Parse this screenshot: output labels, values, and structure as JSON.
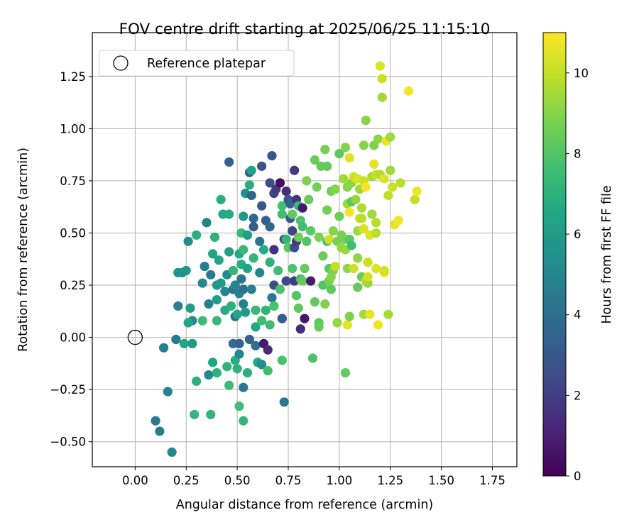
{
  "chart_data": {
    "type": "scatter",
    "title": "FOV centre drift starting at 2025/06/25 11:15:10",
    "xlabel": "Angular distance from reference (arcmin)",
    "ylabel": "Rotation from reference (arcmin)",
    "xlim": [
      -0.21,
      1.87
    ],
    "ylim": [
      -0.62,
      1.46
    ],
    "xticks": [
      0.0,
      0.25,
      0.5,
      0.75,
      1.0,
      1.25,
      1.5,
      1.75
    ],
    "xtick_labels": [
      "0.00",
      "0.25",
      "0.50",
      "0.75",
      "1.00",
      "1.25",
      "1.50",
      "1.75"
    ],
    "yticks": [
      -0.5,
      -0.25,
      0.0,
      0.25,
      0.5,
      0.75,
      1.0,
      1.25
    ],
    "ytick_labels": [
      "−0.50",
      "−0.25",
      "0.00",
      "0.25",
      "0.50",
      "0.75",
      "1.00",
      "1.25"
    ],
    "grid": true,
    "legend": {
      "placement": "top-left",
      "entries": [
        "Reference platepar"
      ]
    },
    "colorbar": {
      "label": "Hours from first FF file",
      "range": [
        0,
        11
      ],
      "ticks": [
        0,
        2,
        4,
        6,
        8,
        10
      ],
      "tick_labels": [
        "0",
        "2",
        "4",
        "6",
        "8",
        "10"
      ],
      "colormap": "viridis"
    },
    "reference_point": {
      "x": 0.0,
      "y": 0.0
    },
    "points": [
      {
        "x": 0.18,
        "y": -0.55,
        "h": 5.0
      },
      {
        "x": 0.12,
        "y": -0.45,
        "h": 4.6
      },
      {
        "x": 0.1,
        "y": -0.4,
        "h": 4.4
      },
      {
        "x": 0.16,
        "y": -0.26,
        "h": 4.8
      },
      {
        "x": 0.14,
        "y": -0.05,
        "h": 4.7
      },
      {
        "x": 0.2,
        "y": -0.01,
        "h": 4.5
      },
      {
        "x": 0.24,
        "y": -0.03,
        "h": 6.4
      },
      {
        "x": 0.28,
        "y": -0.03,
        "h": 6.0
      },
      {
        "x": 0.21,
        "y": 0.15,
        "h": 4.9
      },
      {
        "x": 0.23,
        "y": 0.31,
        "h": 5.2
      },
      {
        "x": 0.21,
        "y": 0.31,
        "h": 5.6
      },
      {
        "x": 0.25,
        "y": 0.32,
        "h": 5.8
      },
      {
        "x": 0.26,
        "y": 0.46,
        "h": 5.4
      },
      {
        "x": 0.3,
        "y": 0.49,
        "h": 6.9
      },
      {
        "x": 0.27,
        "y": 0.14,
        "h": 6.2
      },
      {
        "x": 0.28,
        "y": 0.08,
        "h": 5.1
      },
      {
        "x": 0.26,
        "y": 0.07,
        "h": 6.6
      },
      {
        "x": 0.3,
        "y": -0.21,
        "h": 7.0
      },
      {
        "x": 0.29,
        "y": -0.37,
        "h": 7.2
      },
      {
        "x": 0.37,
        "y": -0.37,
        "h": 7.2
      },
      {
        "x": 0.33,
        "y": 0.08,
        "h": 7.4
      },
      {
        "x": 0.33,
        "y": 0.26,
        "h": 5.0
      },
      {
        "x": 0.34,
        "y": 0.34,
        "h": 4.6
      },
      {
        "x": 0.35,
        "y": 0.55,
        "h": 4.9
      },
      {
        "x": 0.36,
        "y": 0.16,
        "h": 4.8
      },
      {
        "x": 0.37,
        "y": 0.3,
        "h": 4.4
      },
      {
        "x": 0.38,
        "y": 0.4,
        "h": 6.3
      },
      {
        "x": 0.39,
        "y": 0.48,
        "h": 7.1
      },
      {
        "x": 0.36,
        "y": -0.18,
        "h": 5.2
      },
      {
        "x": 0.38,
        "y": -0.12,
        "h": 6.6
      },
      {
        "x": 0.4,
        "y": -0.17,
        "h": 7.0
      },
      {
        "x": 0.4,
        "y": 0.08,
        "h": 7.3
      },
      {
        "x": 0.4,
        "y": 0.18,
        "h": 6.1
      },
      {
        "x": 0.4,
        "y": 0.25,
        "h": 5.6
      },
      {
        "x": 0.41,
        "y": 0.37,
        "h": 6.5
      },
      {
        "x": 0.42,
        "y": 0.26,
        "h": 6.0
      },
      {
        "x": 0.42,
        "y": 0.66,
        "h": 6.8
      },
      {
        "x": 0.43,
        "y": 0.59,
        "h": 6.5
      },
      {
        "x": 0.44,
        "y": 0.13,
        "h": 6.8
      },
      {
        "x": 0.44,
        "y": 0.22,
        "h": 5.0
      },
      {
        "x": 0.45,
        "y": 0.3,
        "h": 5.3
      },
      {
        "x": 0.46,
        "y": 0.41,
        "h": 6.2
      },
      {
        "x": 0.46,
        "y": 0.59,
        "h": 6.7
      },
      {
        "x": 0.46,
        "y": 0.84,
        "h": 3.4
      },
      {
        "x": 0.45,
        "y": -0.14,
        "h": 7.1
      },
      {
        "x": 0.46,
        "y": -0.23,
        "h": 7.4
      },
      {
        "x": 0.47,
        "y": 0.15,
        "h": 7.0
      },
      {
        "x": 0.48,
        "y": 0.23,
        "h": 4.3
      },
      {
        "x": 0.49,
        "y": 0.1,
        "h": 3.8
      },
      {
        "x": 0.48,
        "y": -0.03,
        "h": 3.9
      },
      {
        "x": 0.48,
        "y": 0.32,
        "h": 7.2
      },
      {
        "x": 0.49,
        "y": 0.25,
        "h": 5.0
      },
      {
        "x": 0.49,
        "y": -0.11,
        "h": 6.9
      },
      {
        "x": 0.5,
        "y": -0.15,
        "h": 7.1
      },
      {
        "x": 0.51,
        "y": -0.08,
        "h": 5.0
      },
      {
        "x": 0.51,
        "y": -0.03,
        "h": 3.5
      },
      {
        "x": 0.51,
        "y": -0.33,
        "h": 7.5
      },
      {
        "x": 0.5,
        "y": 0.11,
        "h": 6.4
      },
      {
        "x": 0.51,
        "y": 0.21,
        "h": 4.9
      },
      {
        "x": 0.51,
        "y": 0.4,
        "h": 6.6
      },
      {
        "x": 0.52,
        "y": 0.5,
        "h": 7.3
      },
      {
        "x": 0.52,
        "y": 0.28,
        "h": 4.3
      },
      {
        "x": 0.52,
        "y": 0.35,
        "h": 6.8
      },
      {
        "x": 0.53,
        "y": 0.16,
        "h": 4.7
      },
      {
        "x": 0.53,
        "y": 0.23,
        "h": 4.0
      },
      {
        "x": 0.53,
        "y": -0.24,
        "h": 4.4
      },
      {
        "x": 0.53,
        "y": -0.4,
        "h": 7.2
      },
      {
        "x": 0.54,
        "y": 0.12,
        "h": 6.0
      },
      {
        "x": 0.54,
        "y": 0.69,
        "h": 5.5
      },
      {
        "x": 0.53,
        "y": 0.58,
        "h": 5.8
      },
      {
        "x": 0.53,
        "y": 0.42,
        "h": 7.4
      },
      {
        "x": 0.55,
        "y": 0.33,
        "h": 6.3
      },
      {
        "x": 0.55,
        "y": 0.49,
        "h": 6.1
      },
      {
        "x": 0.56,
        "y": 0.73,
        "h": 6.8
      },
      {
        "x": 0.56,
        "y": 0.79,
        "h": 3.3
      },
      {
        "x": 0.57,
        "y": 0.8,
        "h": 6.3
      },
      {
        "x": 0.56,
        "y": -0.01,
        "h": 3.4
      },
      {
        "x": 0.55,
        "y": -0.17,
        "h": 7.0
      },
      {
        "x": 0.57,
        "y": 0.23,
        "h": 4.8
      },
      {
        "x": 0.58,
        "y": 0.38,
        "h": 7.2
      },
      {
        "x": 0.58,
        "y": 0.57,
        "h": 3.7
      },
      {
        "x": 0.58,
        "y": 0.53,
        "h": 3.2
      },
      {
        "x": 0.57,
        "y": 0.68,
        "h": 3.5
      },
      {
        "x": 0.59,
        "y": 0.13,
        "h": 7.3
      },
      {
        "x": 0.59,
        "y": 0.05,
        "h": 6.6
      },
      {
        "x": 0.59,
        "y": -0.04,
        "h": 4.0
      },
      {
        "x": 0.6,
        "y": -0.12,
        "h": 6.5
      },
      {
        "x": 0.61,
        "y": 0.31,
        "h": 5.0
      },
      {
        "x": 0.61,
        "y": 0.46,
        "h": 4.2
      },
      {
        "x": 0.62,
        "y": 0.63,
        "h": 3.1
      },
      {
        "x": 0.62,
        "y": 0.82,
        "h": 2.8
      },
      {
        "x": 0.62,
        "y": 0.08,
        "h": 7.6
      },
      {
        "x": 0.62,
        "y": -0.13,
        "h": 5.3
      },
      {
        "x": 0.63,
        "y": -0.03,
        "h": 0.8
      },
      {
        "x": 0.63,
        "y": 0.42,
        "h": 6.7
      },
      {
        "x": 0.64,
        "y": 0.56,
        "h": 3.3
      },
      {
        "x": 0.64,
        "y": 0.13,
        "h": 7.1
      },
      {
        "x": 0.65,
        "y": -0.06,
        "h": 1.3
      },
      {
        "x": 0.65,
        "y": -0.16,
        "h": 7.6
      },
      {
        "x": 0.66,
        "y": 0.53,
        "h": 3.6
      },
      {
        "x": 0.66,
        "y": 0.74,
        "h": 2.6
      },
      {
        "x": 0.67,
        "y": 0.87,
        "h": 3.0
      },
      {
        "x": 0.66,
        "y": 0.36,
        "h": 7.0
      },
      {
        "x": 0.67,
        "y": 0.19,
        "h": 4.4
      },
      {
        "x": 0.66,
        "y": 0.06,
        "h": 7.5
      },
      {
        "x": 0.68,
        "y": 0.15,
        "h": 7.8
      },
      {
        "x": 0.68,
        "y": 0.25,
        "h": 2.6
      },
      {
        "x": 0.68,
        "y": 0.42,
        "h": 1.5
      },
      {
        "x": 0.68,
        "y": 0.69,
        "h": 2.2
      },
      {
        "x": 0.69,
        "y": 0.71,
        "h": 1.8
      },
      {
        "x": 0.7,
        "y": 0.32,
        "h": 7.6
      },
      {
        "x": 0.71,
        "y": 0.74,
        "h": 0.4
      },
      {
        "x": 0.71,
        "y": 0.23,
        "h": 7.9
      },
      {
        "x": 0.72,
        "y": 0.63,
        "h": 7.7
      },
      {
        "x": 0.72,
        "y": 0.59,
        "h": 7.6
      },
      {
        "x": 0.72,
        "y": -0.11,
        "h": 7.8
      },
      {
        "x": 0.72,
        "y": 0.09,
        "h": 6.8
      },
      {
        "x": 0.72,
        "y": 0.09,
        "h": 3.2
      },
      {
        "x": 0.73,
        "y": 0.47,
        "h": 2.5
      },
      {
        "x": 0.73,
        "y": -0.31,
        "h": 4.4
      },
      {
        "x": 0.74,
        "y": 0.27,
        "h": 2.5
      },
      {
        "x": 0.74,
        "y": 0.47,
        "h": 7.2
      },
      {
        "x": 0.74,
        "y": 0.7,
        "h": 1.3
      },
      {
        "x": 0.75,
        "y": 0.43,
        "h": 8.2
      },
      {
        "x": 0.75,
        "y": 0.66,
        "h": 2.9
      },
      {
        "x": 0.76,
        "y": 0.57,
        "h": 3.1
      },
      {
        "x": 0.76,
        "y": 0.64,
        "h": 3.3
      },
      {
        "x": 0.77,
        "y": 0.33,
        "h": 7.9
      },
      {
        "x": 0.77,
        "y": 0.59,
        "h": 8.2
      },
      {
        "x": 0.77,
        "y": 0.51,
        "h": 2.2
      },
      {
        "x": 0.78,
        "y": 0.43,
        "h": 2.7
      },
      {
        "x": 0.78,
        "y": 0.8,
        "h": 1.9
      },
      {
        "x": 0.78,
        "y": 0.27,
        "h": 2.0
      },
      {
        "x": 0.79,
        "y": 0.46,
        "h": 1.9
      },
      {
        "x": 0.79,
        "y": 0.66,
        "h": 1.6
      },
      {
        "x": 0.79,
        "y": 0.2,
        "h": 8.0
      },
      {
        "x": 0.8,
        "y": 0.14,
        "h": 8.2
      },
      {
        "x": 0.8,
        "y": 0.48,
        "h": 8.6
      },
      {
        "x": 0.8,
        "y": 0.63,
        "h": 7.3
      },
      {
        "x": 0.81,
        "y": 0.04,
        "h": 1.4
      },
      {
        "x": 0.81,
        "y": 0.28,
        "h": 7.8
      },
      {
        "x": 0.81,
        "y": 0.56,
        "h": 7.9
      },
      {
        "x": 0.82,
        "y": 0.62,
        "h": 0.8
      },
      {
        "x": 0.82,
        "y": 0.53,
        "h": 7.7
      },
      {
        "x": 0.82,
        "y": 0.27,
        "h": 8.3
      },
      {
        "x": 0.83,
        "y": 0.09,
        "h": 0.7
      },
      {
        "x": 0.83,
        "y": 0.33,
        "h": 8.4
      },
      {
        "x": 0.84,
        "y": 0.46,
        "h": 8.0
      },
      {
        "x": 0.84,
        "y": 0.75,
        "h": 8.8
      },
      {
        "x": 0.85,
        "y": 0.66,
        "h": 8.4
      },
      {
        "x": 0.86,
        "y": 0.27,
        "h": 0.9
      },
      {
        "x": 0.86,
        "y": 0.51,
        "h": 8.2
      },
      {
        "x": 0.87,
        "y": -0.1,
        "h": 7.9
      },
      {
        "x": 0.88,
        "y": 0.17,
        "h": 8.3
      },
      {
        "x": 0.88,
        "y": 0.85,
        "h": 8.5
      },
      {
        "x": 0.89,
        "y": 0.72,
        "h": 8.7
      },
      {
        "x": 0.9,
        "y": 0.07,
        "h": 8.2
      },
      {
        "x": 0.9,
        "y": 0.05,
        "h": 8.4
      },
      {
        "x": 0.9,
        "y": 0.48,
        "h": 8.8
      },
      {
        "x": 0.91,
        "y": 0.82,
        "h": 8.4
      },
      {
        "x": 0.92,
        "y": 0.25,
        "h": 8.0
      },
      {
        "x": 0.92,
        "y": 0.39,
        "h": 8.5
      },
      {
        "x": 0.93,
        "y": 0.9,
        "h": 8.7
      },
      {
        "x": 0.93,
        "y": 0.16,
        "h": 8.9
      },
      {
        "x": 0.94,
        "y": 0.61,
        "h": 8.6
      },
      {
        "x": 0.94,
        "y": 0.46,
        "h": 7.9
      },
      {
        "x": 0.94,
        "y": 0.82,
        "h": 8.3
      },
      {
        "x": 0.95,
        "y": 0.47,
        "h": 10.2
      },
      {
        "x": 0.95,
        "y": 0.27,
        "h": 8.8
      },
      {
        "x": 0.95,
        "y": 0.33,
        "h": 8.1
      },
      {
        "x": 0.96,
        "y": 0.29,
        "h": 9.0
      },
      {
        "x": 0.96,
        "y": 0.23,
        "h": 8.2
      },
      {
        "x": 0.96,
        "y": 0.7,
        "h": 8.6
      },
      {
        "x": 0.97,
        "y": 0.51,
        "h": 9.0
      },
      {
        "x": 0.97,
        "y": 0.32,
        "h": 8.9
      },
      {
        "x": 0.98,
        "y": 0.34,
        "h": 10.0
      },
      {
        "x": 0.98,
        "y": 0.71,
        "h": 9.0
      },
      {
        "x": 0.99,
        "y": 0.07,
        "h": 9.3
      },
      {
        "x": 0.99,
        "y": 0.46,
        "h": 8.7
      },
      {
        "x": 1.0,
        "y": 0.88,
        "h": 8.2
      },
      {
        "x": 1.0,
        "y": 0.58,
        "h": 8.5
      },
      {
        "x": 1.01,
        "y": 0.49,
        "h": 8.8
      },
      {
        "x": 1.01,
        "y": 0.43,
        "h": 9.2
      },
      {
        "x": 1.02,
        "y": 0.76,
        "h": 9.4
      },
      {
        "x": 1.03,
        "y": 0.91,
        "h": 9.0
      },
      {
        "x": 1.03,
        "y": 0.42,
        "h": 9.3
      },
      {
        "x": 1.03,
        "y": -0.17,
        "h": 8.3
      },
      {
        "x": 1.03,
        "y": 0.47,
        "h": 8.7
      },
      {
        "x": 1.04,
        "y": 0.06,
        "h": 10.6
      },
      {
        "x": 1.04,
        "y": 0.33,
        "h": 9.1
      },
      {
        "x": 1.04,
        "y": 0.72,
        "h": 9.0
      },
      {
        "x": 1.04,
        "y": 0.64,
        "h": 9.4
      },
      {
        "x": 1.05,
        "y": 0.6,
        "h": 10.8
      },
      {
        "x": 1.05,
        "y": 0.86,
        "h": 10.5
      },
      {
        "x": 1.05,
        "y": 0.47,
        "h": 8.2
      },
      {
        "x": 1.05,
        "y": 0.1,
        "h": 8.9
      },
      {
        "x": 1.06,
        "y": 0.74,
        "h": 9.1
      },
      {
        "x": 1.06,
        "y": 0.44,
        "h": 7.6
      },
      {
        "x": 1.06,
        "y": 0.65,
        "h": 8.1
      },
      {
        "x": 1.07,
        "y": 0.33,
        "h": 10.1
      },
      {
        "x": 1.07,
        "y": 0.77,
        "h": 10.3
      },
      {
        "x": 1.08,
        "y": 0.66,
        "h": 9.2
      },
      {
        "x": 1.08,
        "y": 0.76,
        "h": 10.0
      },
      {
        "x": 1.09,
        "y": 0.51,
        "h": 9.4
      },
      {
        "x": 1.09,
        "y": 0.38,
        "h": 9.1
      },
      {
        "x": 1.09,
        "y": 0.24,
        "h": 8.4
      },
      {
        "x": 1.09,
        "y": 0.76,
        "h": 10.4
      },
      {
        "x": 1.1,
        "y": 0.71,
        "h": 9.5
      },
      {
        "x": 1.1,
        "y": 0.57,
        "h": 10.2
      },
      {
        "x": 1.11,
        "y": 0.29,
        "h": 8.5
      },
      {
        "x": 1.11,
        "y": 0.62,
        "h": 9.6
      },
      {
        "x": 1.11,
        "y": 0.57,
        "h": 9.8
      },
      {
        "x": 1.12,
        "y": 0.11,
        "h": 9.4
      },
      {
        "x": 1.12,
        "y": 0.75,
        "h": 10.2
      },
      {
        "x": 1.12,
        "y": 0.92,
        "h": 9.0
      },
      {
        "x": 1.12,
        "y": 0.52,
        "h": 10.4
      },
      {
        "x": 1.13,
        "y": 0.72,
        "h": 10.9
      },
      {
        "x": 1.13,
        "y": 0.27,
        "h": 10.0
      },
      {
        "x": 1.13,
        "y": 1.04,
        "h": 9.0
      },
      {
        "x": 1.14,
        "y": 0.36,
        "h": 10.1
      },
      {
        "x": 1.14,
        "y": 0.26,
        "h": 9.3
      },
      {
        "x": 1.14,
        "y": 0.29,
        "h": 10.3
      },
      {
        "x": 1.15,
        "y": 0.49,
        "h": 10.4
      },
      {
        "x": 1.15,
        "y": 0.11,
        "h": 10.6
      },
      {
        "x": 1.16,
        "y": 0.59,
        "h": 9.4
      },
      {
        "x": 1.16,
        "y": 0.77,
        "h": 9.6
      },
      {
        "x": 1.17,
        "y": 0.83,
        "h": 10.6
      },
      {
        "x": 1.17,
        "y": 0.92,
        "h": 8.9
      },
      {
        "x": 1.18,
        "y": 0.33,
        "h": 10.4
      },
      {
        "x": 1.18,
        "y": 0.78,
        "h": 10.1
      },
      {
        "x": 1.18,
        "y": 0.55,
        "h": 9.8
      },
      {
        "x": 1.18,
        "y": 0.5,
        "h": 9.8
      },
      {
        "x": 1.19,
        "y": 0.06,
        "h": 10.7
      },
      {
        "x": 1.19,
        "y": 0.95,
        "h": 9.1
      },
      {
        "x": 1.2,
        "y": 1.3,
        "h": 10.4
      },
      {
        "x": 1.2,
        "y": 0.78,
        "h": 9.7
      },
      {
        "x": 1.21,
        "y": 1.15,
        "h": 9.4
      },
      {
        "x": 1.21,
        "y": 1.24,
        "h": 10.1
      },
      {
        "x": 1.22,
        "y": 0.76,
        "h": 10.4
      },
      {
        "x": 1.22,
        "y": 0.31,
        "h": 10.8
      },
      {
        "x": 1.22,
        "y": 0.32,
        "h": 10.3
      },
      {
        "x": 1.23,
        "y": 0.94,
        "h": 10.7
      },
      {
        "x": 1.24,
        "y": 0.11,
        "h": 9.5
      },
      {
        "x": 1.24,
        "y": 0.68,
        "h": 10.0
      },
      {
        "x": 1.25,
        "y": 0.8,
        "h": 9.4
      },
      {
        "x": 1.25,
        "y": 0.96,
        "h": 9.4
      },
      {
        "x": 1.26,
        "y": 0.72,
        "h": 10.1
      },
      {
        "x": 1.27,
        "y": 0.54,
        "h": 10.6
      },
      {
        "x": 1.29,
        "y": 0.56,
        "h": 10.8
      },
      {
        "x": 1.3,
        "y": 0.74,
        "h": 9.8
      },
      {
        "x": 1.34,
        "y": 1.18,
        "h": 10.8
      },
      {
        "x": 1.37,
        "y": 0.66,
        "h": 10.0
      },
      {
        "x": 1.38,
        "y": 0.7,
        "h": 10.8
      }
    ]
  }
}
